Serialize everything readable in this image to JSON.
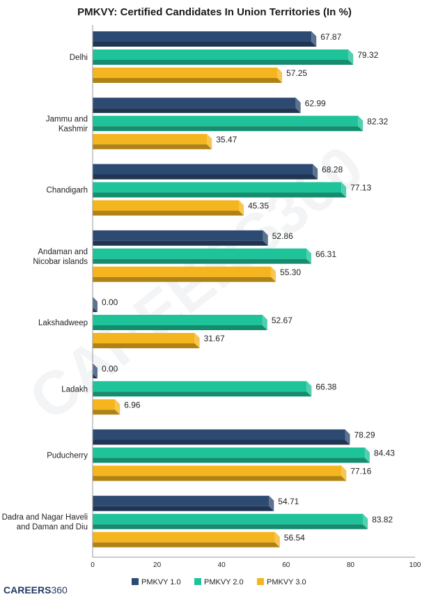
{
  "brand": {
    "name_bold": "CAREERS",
    "name_num": "360"
  },
  "chart_data": {
    "type": "bar",
    "orientation": "horizontal",
    "title": "PMKVY: Certified Candidates In Union Territories (In %)",
    "categories": [
      [
        "Delhi"
      ],
      [
        "Jammu and",
        "Kashmir"
      ],
      [
        "Chandigarh"
      ],
      [
        "Andaman and",
        "Nicobar islands"
      ],
      [
        "Lakshadweep"
      ],
      [
        "Ladakh"
      ],
      [
        "Puducherry"
      ],
      [
        "Dadra and Nagar Haveli",
        "and Daman and Diu"
      ]
    ],
    "series": [
      {
        "name": "PMKVY 1.0",
        "color": "#2d4a72",
        "values": [
          67.87,
          62.99,
          68.28,
          52.86,
          0.0,
          0.0,
          78.29,
          54.71
        ]
      },
      {
        "name": "PMKVY 2.0",
        "color": "#1ec39a",
        "values": [
          79.32,
          82.32,
          77.13,
          66.31,
          52.67,
          66.38,
          84.43,
          83.82
        ]
      },
      {
        "name": "PMKVY 3.0",
        "color": "#f5b51f",
        "values": [
          57.25,
          35.47,
          45.35,
          55.3,
          31.67,
          6.96,
          77.16,
          56.54
        ]
      }
    ],
    "xlim": [
      0,
      100
    ],
    "xticks": [
      0,
      20,
      40,
      60,
      80,
      100
    ],
    "legend_position": "bottom",
    "watermark": "CAREERS360"
  }
}
